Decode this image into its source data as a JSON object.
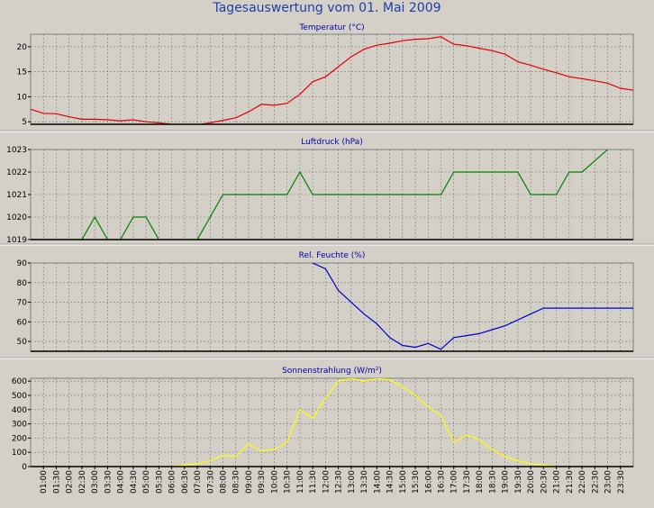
{
  "title": "Tagesauswertung vom 01. Mai 2009",
  "time_labels": [
    "01:00",
    "01:30",
    "02:00",
    "02:30",
    "03:00",
    "03:30",
    "04:00",
    "04:30",
    "05:00",
    "05:30",
    "06:00",
    "06:30",
    "07:00",
    "07:30",
    "08:00",
    "08:30",
    "09:00",
    "09:30",
    "10:00",
    "10:30",
    "11:00",
    "11:30",
    "12:00",
    "12:30",
    "13:00",
    "13:30",
    "14:00",
    "14:30",
    "15:00",
    "15:30",
    "16:00",
    "16:30",
    "17:00",
    "17:30",
    "18:00",
    "18:30",
    "19:00",
    "19:30",
    "20:00",
    "20:30",
    "21:00",
    "21:30",
    "22:00",
    "22:30",
    "23:00",
    "23:30"
  ],
  "chart_data": [
    {
      "type": "line",
      "title": "Temperatur (°C)",
      "color": "#e00000",
      "ylim": [
        4.5,
        22.5
      ],
      "yticks": [
        5,
        10,
        15,
        20
      ],
      "x": [
        0.5,
        1,
        1.5,
        2,
        2.5,
        3,
        3.5,
        4,
        4.5,
        5,
        5.5,
        6,
        6.5,
        7,
        7.5,
        8,
        8.5,
        9,
        9.5,
        10,
        10.5,
        11,
        11.5,
        12,
        12.5,
        13,
        13.5,
        14,
        14.5,
        15,
        15.5,
        16,
        16.5,
        17,
        17.5,
        18,
        18.5,
        19,
        19.5,
        20,
        20.5,
        21,
        21.5,
        22,
        22.5,
        23,
        23.5,
        24
      ],
      "values": [
        7.5,
        6.7,
        6.6,
        6.0,
        5.5,
        5.5,
        5.4,
        5.2,
        5.4,
        5.0,
        4.8,
        4.5,
        4.3,
        4.4,
        4.8,
        5.3,
        5.8,
        7.0,
        8.5,
        8.3,
        8.7,
        10.5,
        13.0,
        14.0,
        16.0,
        18.0,
        19.5,
        20.3,
        20.7,
        21.2,
        21.5,
        21.6,
        22.0,
        20.5,
        20.2,
        19.7,
        19.2,
        18.5,
        17.0,
        16.3,
        15.5,
        14.8,
        14.0,
        13.6,
        13.2,
        12.7,
        11.7,
        11.3
      ]
    },
    {
      "type": "line",
      "title": "Luftdruck (hPa)",
      "color": "#008000",
      "ylim": [
        1019,
        1023
      ],
      "yticks": [
        1019,
        1020,
        1021,
        1022,
        1023
      ],
      "x": [
        0.5,
        2.5,
        3,
        3.5,
        4,
        4.5,
        5,
        5.5,
        6,
        7,
        7.5,
        8,
        8.5,
        10.5,
        11,
        11.5,
        16.5,
        17,
        19.5,
        20,
        21,
        21.5,
        22,
        23,
        23.5
      ],
      "values": [
        1019,
        1019,
        1020,
        1019,
        1019,
        1020,
        1020,
        1019,
        1019,
        1019,
        1020,
        1021,
        1021,
        1021,
        1022,
        1021,
        1021,
        1022,
        1022,
        1021,
        1021,
        1022,
        1022,
        1023,
        1023.6
      ]
    },
    {
      "type": "line",
      "title": "Rel. Feuchte (%)",
      "color": "#0000cc",
      "ylim": [
        45,
        90
      ],
      "yticks": [
        50,
        60,
        70,
        80,
        90
      ],
      "x": [
        11.5,
        12,
        12.5,
        13,
        13.5,
        14,
        14.5,
        15,
        15.5,
        16,
        16.5,
        17,
        17.5,
        18,
        18.5,
        19,
        19.5,
        20,
        20.5,
        21,
        21.5,
        22,
        22.5,
        23,
        23.5,
        24
      ],
      "values": [
        90,
        87,
        76,
        70,
        64,
        59,
        52,
        48,
        47,
        49,
        46,
        52,
        53,
        54,
        56,
        58,
        61,
        64,
        67,
        67,
        67,
        67,
        67,
        67,
        67,
        67
      ]
    },
    {
      "type": "line",
      "title": "Sonnenstrahlung (W/m²)",
      "color": "#ffff00",
      "ylim": [
        0,
        620
      ],
      "yticks": [
        0,
        100,
        200,
        300,
        400,
        500,
        600
      ],
      "x": [
        0.5,
        6,
        6.5,
        7,
        7.5,
        8,
        8.5,
        9,
        9.5,
        10,
        10.5,
        11,
        11.5,
        12,
        12.5,
        13,
        13.5,
        14,
        14.5,
        15,
        15.5,
        16,
        16.5,
        17,
        17.5,
        18,
        18.5,
        19,
        19.5,
        20,
        20.5,
        21,
        24
      ],
      "values": [
        0,
        0,
        10,
        20,
        40,
        80,
        70,
        160,
        110,
        120,
        170,
        400,
        340,
        480,
        600,
        620,
        600,
        620,
        610,
        560,
        500,
        420,
        360,
        170,
        220,
        190,
        120,
        70,
        40,
        20,
        10,
        0,
        0
      ]
    }
  ]
}
